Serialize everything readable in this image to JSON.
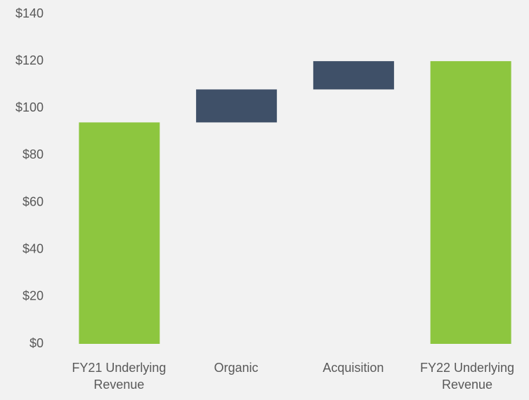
{
  "chart_data": {
    "type": "waterfall",
    "categories": [
      "FY21 Underlying Revenue",
      "Organic",
      "Acquisition",
      "FY22 Underlying Revenue"
    ],
    "values": [
      94,
      14,
      12,
      120
    ],
    "kinds": [
      "total",
      "increase",
      "increase",
      "total"
    ],
    "colors": {
      "total": "#8dc63f",
      "increase": "#3f5068"
    },
    "ylim": [
      0,
      140
    ],
    "yticks": [
      {
        "value": 0,
        "label": "$0"
      },
      {
        "value": 20,
        "label": "$20"
      },
      {
        "value": 40,
        "label": "$40"
      },
      {
        "value": 60,
        "label": "$60"
      },
      {
        "value": 80,
        "label": "$80"
      },
      {
        "value": 100,
        "label": "$100"
      },
      {
        "value": 120,
        "label": "$120"
      },
      {
        "value": 140,
        "label": "$140"
      }
    ],
    "grid": false
  }
}
